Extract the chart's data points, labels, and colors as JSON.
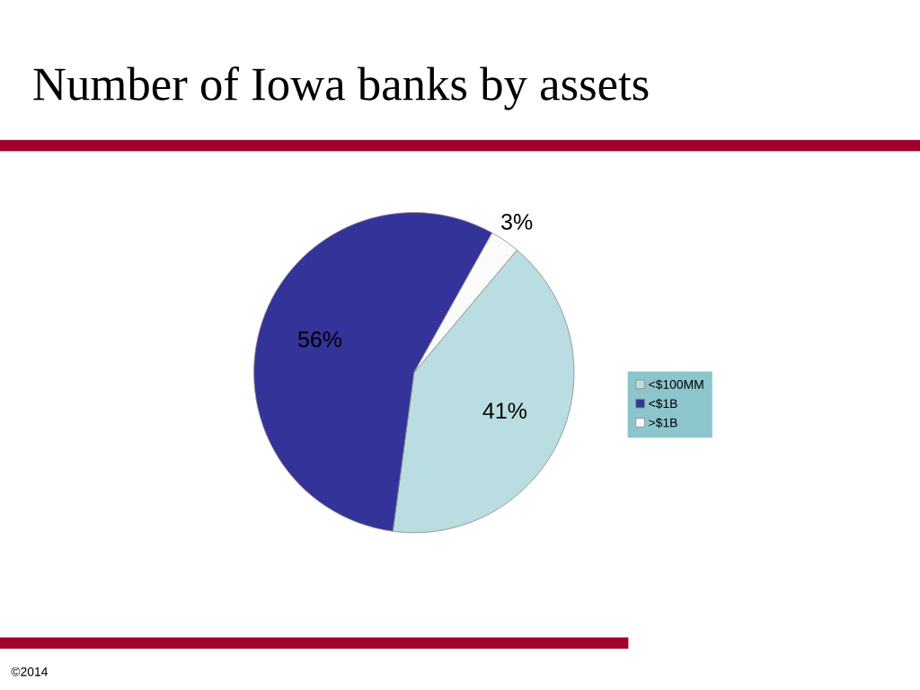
{
  "chart_data": {
    "type": "pie",
    "title": "Number of Iowa banks by assets",
    "categories": [
      "<$100MM",
      "<$1B",
      ">$1B"
    ],
    "values": [
      41,
      56,
      3
    ],
    "value_labels": [
      "41%",
      "56%",
      "3%"
    ],
    "colors": [
      "#b9dde0",
      "#333399",
      "#fbfbfb"
    ],
    "legend": "right",
    "annotations": [
      "©2014"
    ]
  }
}
